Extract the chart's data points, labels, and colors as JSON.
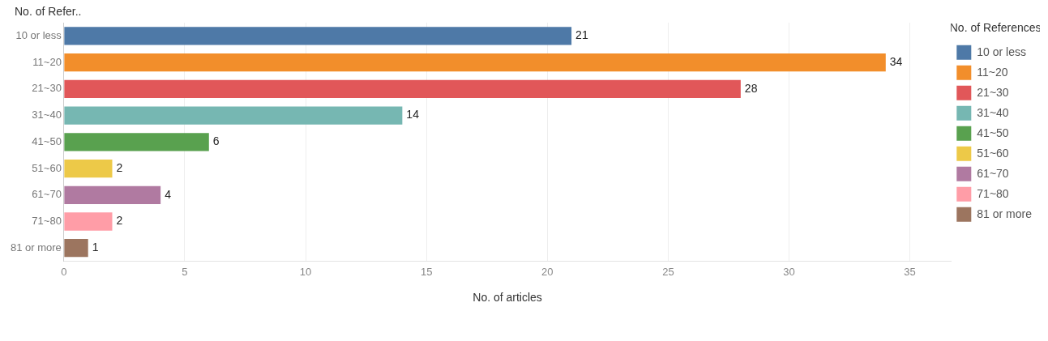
{
  "chart_data": {
    "type": "bar",
    "orientation": "horizontal",
    "xlabel": "No. of articles",
    "ylabel": "No. of Refer..",
    "legend_title": "No. of References",
    "categories": [
      "10 or less",
      "11~20",
      "21~30",
      "31~40",
      "41~50",
      "51~60",
      "61~70",
      "71~80",
      "81 or more"
    ],
    "series": [
      {
        "name": "10 or less",
        "color": "#4e79a7",
        "values": [
          21,
          null,
          null,
          null,
          null,
          null,
          null,
          null,
          null
        ]
      },
      {
        "name": "11~20",
        "color": "#f28e2b",
        "values": [
          null,
          34,
          null,
          null,
          null,
          null,
          null,
          null,
          null
        ]
      },
      {
        "name": "21~30",
        "color": "#e15759",
        "values": [
          null,
          null,
          28,
          null,
          null,
          null,
          null,
          null,
          null
        ]
      },
      {
        "name": "31~40",
        "color": "#76b7b2",
        "values": [
          null,
          null,
          null,
          14,
          null,
          null,
          null,
          null,
          null
        ]
      },
      {
        "name": "41~50",
        "color": "#59a14f",
        "values": [
          null,
          null,
          null,
          null,
          6,
          null,
          null,
          null,
          null
        ]
      },
      {
        "name": "51~60",
        "color": "#edc948",
        "values": [
          null,
          null,
          null,
          null,
          null,
          2,
          null,
          null,
          null
        ]
      },
      {
        "name": "61~70",
        "color": "#b07aa1",
        "values": [
          null,
          null,
          null,
          null,
          null,
          null,
          4,
          null,
          null
        ]
      },
      {
        "name": "71~80",
        "color": "#ff9da7",
        "values": [
          null,
          null,
          null,
          null,
          null,
          null,
          null,
          2,
          null
        ]
      },
      {
        "name": "81 or more",
        "color": "#9c755f",
        "values": [
          null,
          null,
          null,
          null,
          null,
          null,
          null,
          null,
          1
        ]
      }
    ],
    "xlim": [
      0,
      36.7
    ],
    "xticks": [
      0,
      5,
      10,
      15,
      20,
      25,
      30,
      35
    ],
    "grid": "x",
    "legend": "top right",
    "data_labels": true
  }
}
